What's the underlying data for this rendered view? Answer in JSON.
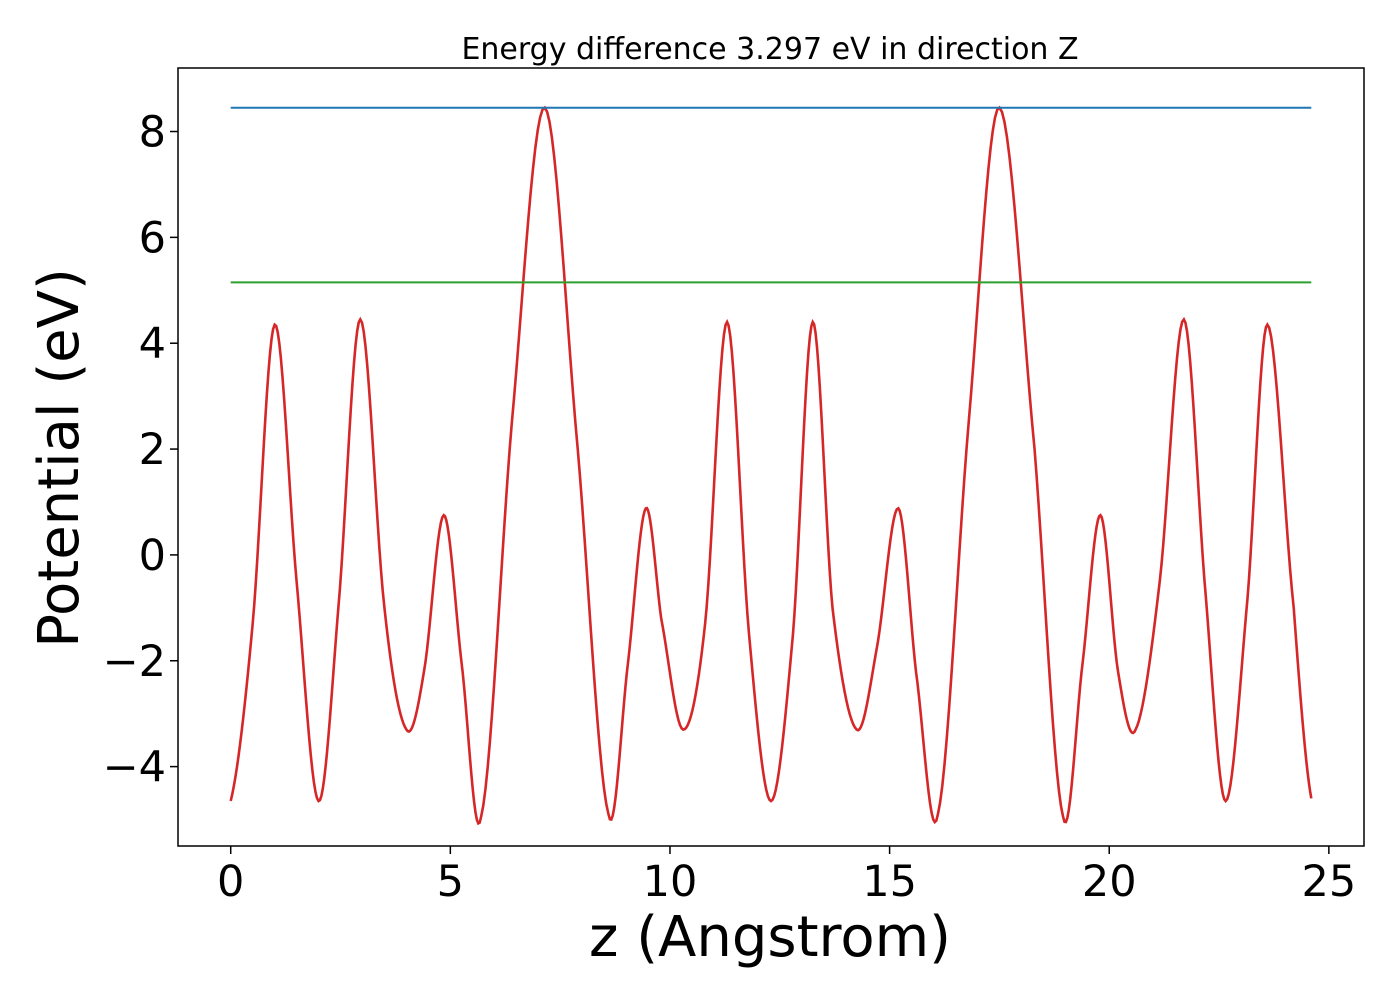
{
  "chart_data": {
    "type": "line",
    "title": "Energy difference 3.297 eV in direction Z",
    "xlabel": "z (Angstrom)",
    "ylabel": "Potential (eV)",
    "xlim": [
      -1.2,
      25.8
    ],
    "ylim": [
      -5.5,
      9.2
    ],
    "x_ticks": [
      0,
      5,
      10,
      15,
      20,
      25
    ],
    "y_ticks": [
      -4,
      -2,
      0,
      2,
      4,
      6,
      8
    ],
    "x_tick_labels": [
      "0",
      "5",
      "10",
      "15",
      "20",
      "25"
    ],
    "y_tick_labels": [
      "−4",
      "−2",
      "0",
      "2",
      "4",
      "6",
      "8"
    ],
    "grid": false,
    "legend": "none",
    "series": [
      {
        "color": "#d62728",
        "points": [
          [
            0.0,
            -4.65
          ],
          [
            0.5,
            -1.3
          ],
          [
            1.0,
            4.35
          ],
          [
            1.5,
            -0.5
          ],
          [
            2.0,
            -4.65
          ],
          [
            2.45,
            -1.0
          ],
          [
            2.95,
            4.45
          ],
          [
            3.5,
            -1.0
          ],
          [
            4.0,
            -3.3
          ],
          [
            4.4,
            -2.2
          ],
          [
            4.85,
            0.75
          ],
          [
            5.25,
            -2.0
          ],
          [
            5.7,
            -4.95
          ],
          [
            6.4,
            2.5
          ],
          [
            7.15,
            8.45
          ],
          [
            7.9,
            2.0
          ],
          [
            8.6,
            -4.9
          ],
          [
            9.05,
            -2.0
          ],
          [
            9.45,
            0.88
          ],
          [
            9.8,
            -1.2
          ],
          [
            10.3,
            -3.3
          ],
          [
            10.8,
            -1.3
          ],
          [
            11.3,
            4.4
          ],
          [
            11.8,
            -1.5
          ],
          [
            12.3,
            -4.65
          ],
          [
            12.8,
            -1.5
          ],
          [
            13.25,
            4.4
          ],
          [
            13.7,
            -1.0
          ],
          [
            14.25,
            -3.3
          ],
          [
            14.7,
            -1.8
          ],
          [
            15.2,
            0.88
          ],
          [
            15.6,
            -2.2
          ],
          [
            16.1,
            -4.9
          ],
          [
            16.8,
            2.5
          ],
          [
            17.5,
            8.45
          ],
          [
            18.3,
            2.0
          ],
          [
            18.95,
            -4.95
          ],
          [
            19.4,
            -2.0
          ],
          [
            19.8,
            0.75
          ],
          [
            20.2,
            -2.2
          ],
          [
            20.6,
            -3.3
          ],
          [
            21.15,
            -0.5
          ],
          [
            21.7,
            4.45
          ],
          [
            22.2,
            -0.8
          ],
          [
            22.65,
            -4.65
          ],
          [
            23.15,
            -0.8
          ],
          [
            23.6,
            4.35
          ],
          [
            24.2,
            -1.0
          ],
          [
            24.6,
            -4.6
          ]
        ]
      },
      {
        "color": "#1f77b4",
        "x": [
          0.0,
          24.6
        ],
        "y": [
          8.45,
          8.45
        ]
      },
      {
        "color": "#2ca02c",
        "x": [
          0.0,
          24.6
        ],
        "y": [
          5.15,
          5.15
        ]
      }
    ]
  }
}
